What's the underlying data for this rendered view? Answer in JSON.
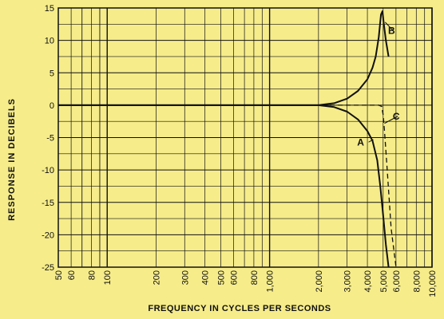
{
  "chart_data": {
    "type": "line",
    "title": "",
    "xlabel": "FREQUENCY IN CYCLES PER SECONDS",
    "ylabel": "RESPONSE IN DECIBELS",
    "xscale": "log",
    "xlim": [
      50,
      10000
    ],
    "ylim": [
      -25,
      15
    ],
    "grid": true,
    "x_ticks": [
      50,
      60,
      80,
      100,
      200,
      300,
      400,
      500,
      600,
      800,
      1000,
      2000,
      3000,
      4000,
      5000,
      6000,
      8000,
      10000
    ],
    "x_tick_labels": [
      "50",
      "60",
      "80",
      "100",
      "200",
      "300",
      "400",
      "500",
      "600",
      "800",
      "1,000",
      "2,000",
      "3,000",
      "4,000",
      "5,000",
      "6,000",
      "8,000",
      "10,000"
    ],
    "y_ticks": [
      15,
      10,
      5,
      0,
      -5,
      -10,
      -15,
      -20,
      -25
    ],
    "y_tick_labels": [
      "15",
      "10",
      "5",
      "0",
      "-5",
      "-10",
      "-15",
      "-20",
      "-25"
    ],
    "series": [
      {
        "name": "A",
        "style": "solid",
        "x": [
          50,
          1000,
          2000,
          2500,
          3000,
          3500,
          4000,
          4300,
          4600,
          4800,
          5000,
          5200,
          5400
        ],
        "y": [
          0,
          0,
          0,
          -0.3,
          -1.0,
          -2.2,
          -4.0,
          -5.5,
          -8.5,
          -12.5,
          -17.0,
          -21.5,
          -25.0
        ]
      },
      {
        "name": "B",
        "style": "solid",
        "x": [
          50,
          1000,
          2000,
          2500,
          3000,
          3500,
          4000,
          4300,
          4500,
          4700,
          4850,
          4950,
          5050,
          5200,
          5400
        ],
        "y": [
          0,
          0,
          0,
          0.3,
          1.0,
          2.2,
          4.0,
          5.8,
          7.5,
          10.5,
          14.0,
          14.5,
          12.5,
          10.0,
          7.5
        ]
      },
      {
        "name": "C",
        "style": "dashed",
        "x": [
          50,
          1000,
          2000,
          4000,
          4700,
          4900,
          5000,
          5100,
          5300,
          5600,
          6000
        ],
        "y": [
          0,
          0,
          0,
          0,
          0,
          -0.2,
          -1.5,
          -4.0,
          -10.0,
          -19.0,
          -25.0
        ]
      }
    ],
    "annotations": [
      {
        "text": "A",
        "x": 3800,
        "y": -6.2,
        "target_x": 4350,
        "target_y": -5.3
      },
      {
        "text": "B",
        "x": 5900,
        "y": 11.0,
        "target_x": 5150,
        "target_y": 12.8
      },
      {
        "text": "C",
        "x": 6300,
        "y": -2.2,
        "target_x": 5100,
        "target_y": -2.8
      }
    ]
  }
}
